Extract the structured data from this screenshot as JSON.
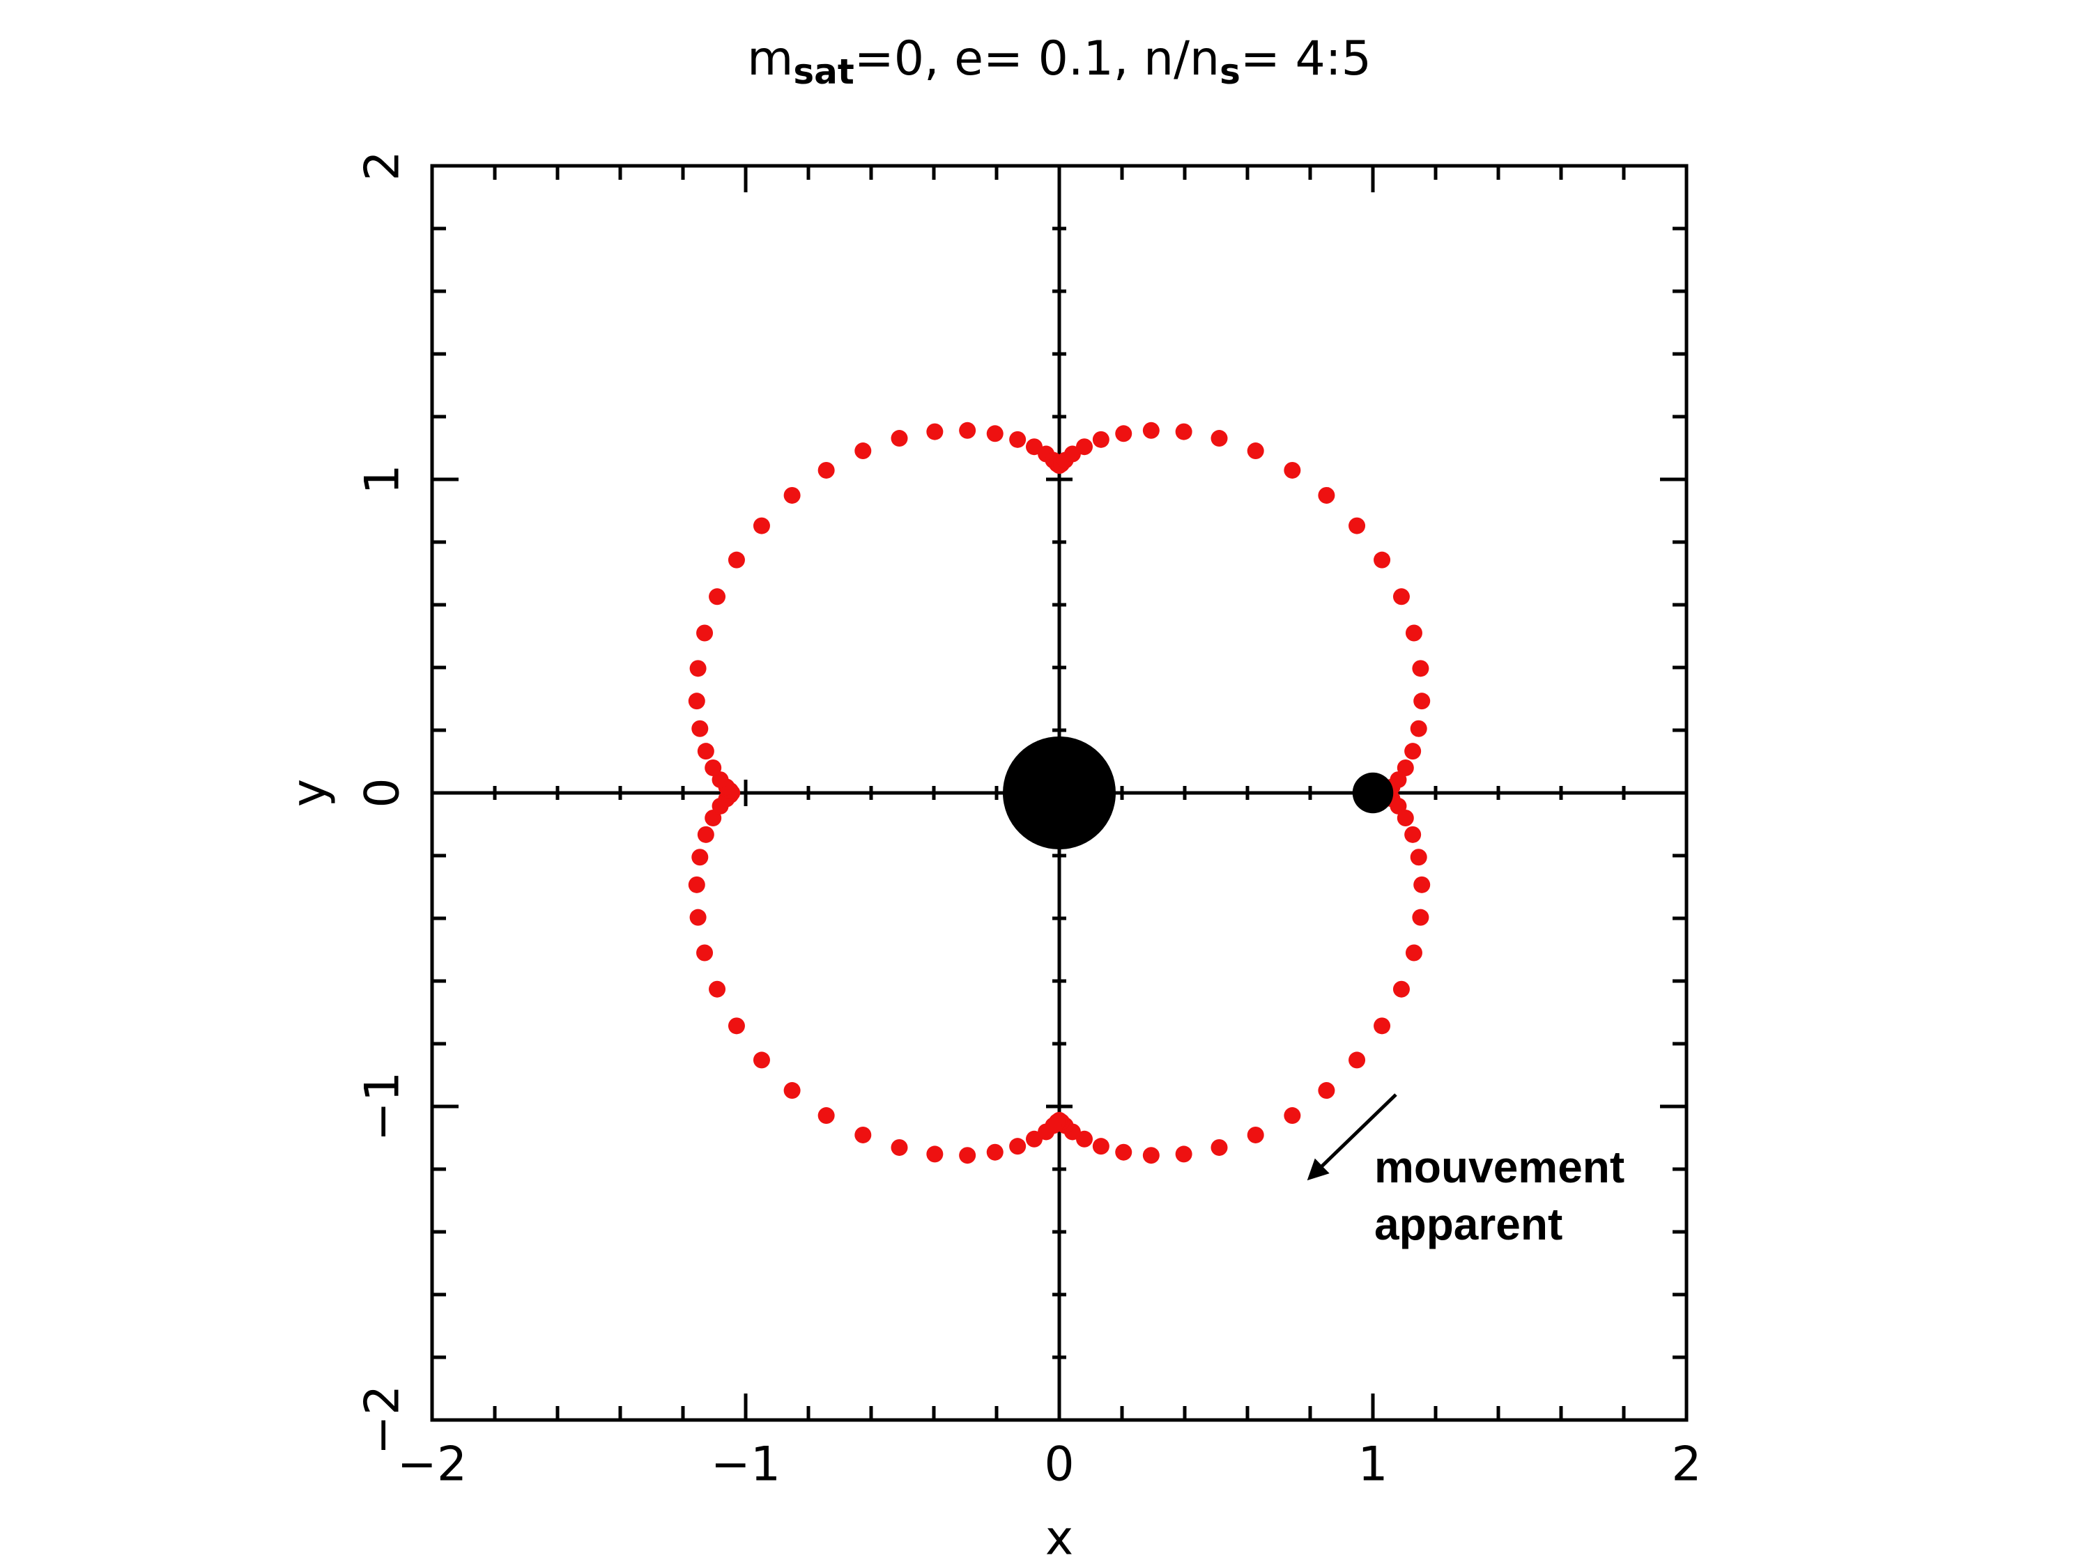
{
  "chart_data": {
    "type": "scatter",
    "title": [
      {
        "text": "m"
      },
      {
        "text": "sat",
        "sub": true
      },
      {
        "text": "=0, e= 0.1, n/n"
      },
      {
        "text": "s",
        "sub": true
      },
      {
        "text": "= 4:5"
      }
    ],
    "xlabel": "x",
    "ylabel": "y",
    "xlim": [
      -2,
      2
    ],
    "ylim": [
      -2,
      2
    ],
    "xticks": [
      {
        "value": -2,
        "label": "−2"
      },
      {
        "value": -1,
        "label": "−1"
      },
      0,
      1,
      2
    ],
    "yticks": [
      {
        "value": -2,
        "label": "−2"
      },
      {
        "value": -1,
        "label": "−1"
      },
      0,
      1,
      2
    ],
    "xminorticks": [
      -1.8,
      -1.6,
      -1.4,
      -1.2,
      -0.8,
      -0.6,
      -0.4,
      -0.2,
      0.2,
      0.4,
      0.6,
      0.8,
      1.2,
      1.4,
      1.6,
      1.8
    ],
    "yminorticks": [
      -1.8,
      -1.6,
      -1.4,
      -1.2,
      -0.8,
      -0.6,
      -0.4,
      -0.2,
      0.2,
      0.4,
      0.6,
      0.8,
      1.2,
      1.4,
      1.6,
      1.8
    ],
    "zero_axes": true,
    "series": [
      {
        "color": "#ee1111",
        "x": [
          1.044,
          1.049,
          1.061,
          1.081,
          1.104,
          1.127,
          1.146,
          1.156,
          1.152,
          1.131,
          1.091,
          1.029,
          0.949,
          0.852,
          0.743,
          0.626,
          0.51,
          0.397,
          0.293,
          0.205,
          0.133,
          0.08,
          0.042,
          0.019,
          0.007,
          0,
          -0.007,
          -0.019,
          -0.042,
          -0.08,
          -0.133,
          -0.205,
          -0.293,
          -0.397,
          -0.51,
          -0.626,
          -0.743,
          -0.852,
          -0.949,
          -1.029,
          -1.091,
          -1.131,
          -1.152,
          -1.156,
          -1.146,
          -1.127,
          -1.104,
          -1.081,
          -1.061,
          -1.049,
          -1.044,
          -1.049,
          -1.061,
          -1.081,
          -1.104,
          -1.127,
          -1.146,
          -1.156,
          -1.152,
          -1.131,
          -1.091,
          -1.029,
          -0.949,
          -0.852,
          -0.743,
          -0.626,
          -0.51,
          -0.397,
          -0.293,
          -0.205,
          -0.133,
          -0.08,
          -0.042,
          -0.019,
          -0.007,
          0,
          0.007,
          0.019,
          0.042,
          0.08,
          0.133,
          0.205,
          0.293,
          0.397,
          0.51,
          0.626,
          0.743,
          0.852,
          0.949,
          1.029,
          1.091,
          1.131,
          1.152,
          1.156,
          1.146,
          1.127,
          1.104,
          1.081,
          1.061,
          1.049
        ],
        "y": [
          0,
          -0.007,
          -0.019,
          -0.042,
          -0.08,
          -0.133,
          -0.205,
          -0.293,
          -0.397,
          -0.51,
          -0.626,
          -0.743,
          -0.852,
          -0.949,
          -1.029,
          -1.091,
          -1.131,
          -1.152,
          -1.156,
          -1.146,
          -1.127,
          -1.104,
          -1.081,
          -1.061,
          -1.049,
          -1.044,
          -1.049,
          -1.061,
          -1.081,
          -1.104,
          -1.127,
          -1.146,
          -1.156,
          -1.152,
          -1.131,
          -1.091,
          -1.029,
          -0.949,
          -0.852,
          -0.743,
          -0.626,
          -0.51,
          -0.397,
          -0.293,
          -0.205,
          -0.133,
          -0.08,
          -0.042,
          -0.019,
          -0.007,
          0,
          0.007,
          0.019,
          0.042,
          0.08,
          0.133,
          0.205,
          0.293,
          0.397,
          0.51,
          0.626,
          0.743,
          0.852,
          0.949,
          1.029,
          1.091,
          1.131,
          1.152,
          1.156,
          1.146,
          1.127,
          1.104,
          1.081,
          1.061,
          1.049,
          1.044,
          1.049,
          1.061,
          1.081,
          1.104,
          1.127,
          1.146,
          1.156,
          1.152,
          1.131,
          1.091,
          1.029,
          0.949,
          0.852,
          0.743,
          0.626,
          0.51,
          0.397,
          0.293,
          0.205,
          0.133,
          0.08,
          0.042,
          0.019,
          0.007
        ]
      }
    ],
    "bodies": {
      "color": "#000000",
      "x": [
        0,
        1
      ],
      "y": [
        0,
        0
      ],
      "r": [
        0.18,
        0.065
      ]
    },
    "annotation": [
      "mouvement",
      "apparent"
    ]
  }
}
